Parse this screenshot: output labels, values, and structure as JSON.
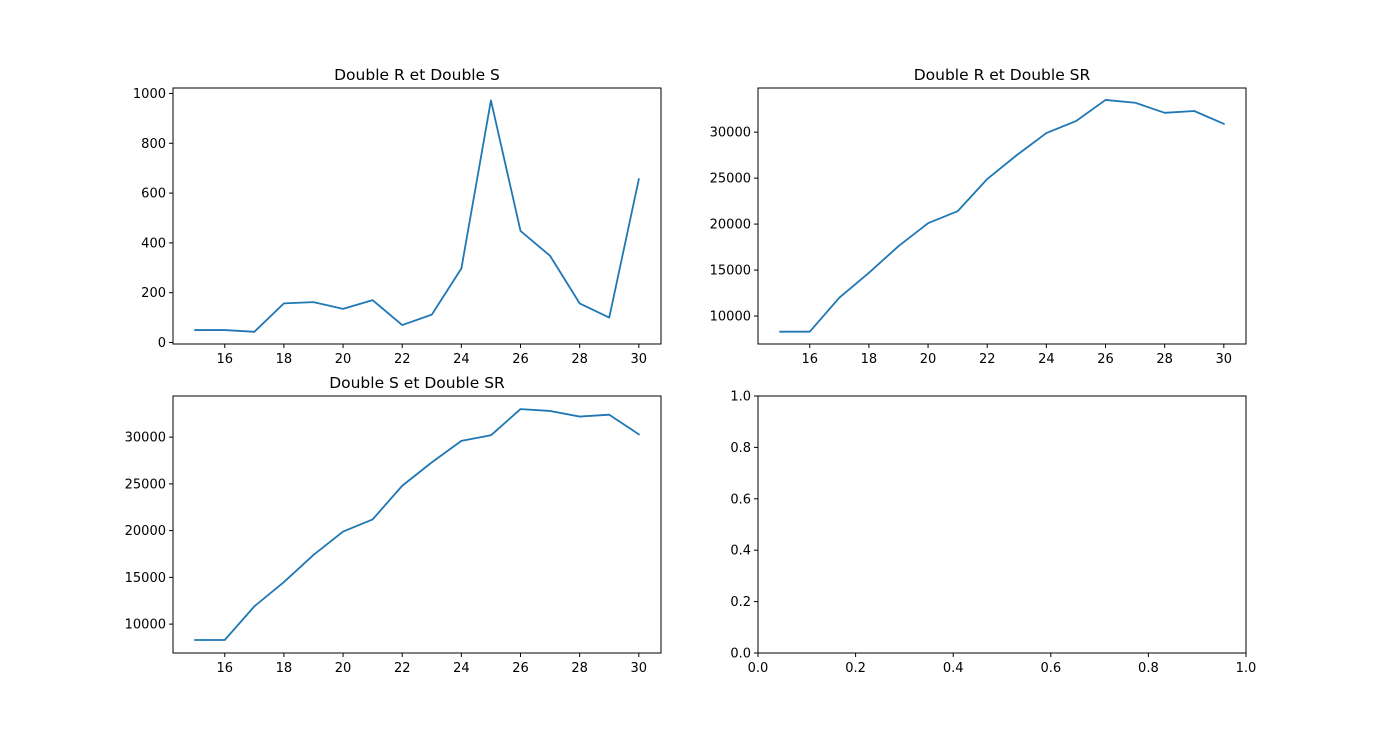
{
  "chart_data": [
    {
      "type": "line",
      "title": "Double R et Double S",
      "xlabel": "",
      "ylabel": "",
      "xlim": [
        14.25,
        30.75
      ],
      "ylim": [
        -6,
        1022
      ],
      "xticks": [
        16,
        18,
        20,
        22,
        24,
        26,
        28,
        30
      ],
      "yticks": [
        0,
        200,
        400,
        600,
        800,
        1000
      ],
      "grid": false,
      "color": "#1f77b4",
      "series": [
        {
          "x": [
            15,
            16,
            17,
            18,
            19,
            20,
            21,
            22,
            23,
            24,
            25,
            26,
            27,
            28,
            29,
            30
          ],
          "values": [
            50,
            50,
            43,
            157,
            162,
            135,
            170,
            70,
            112,
            297,
            972,
            448,
            348,
            157,
            100,
            656
          ]
        }
      ]
    },
    {
      "type": "line",
      "title": "Double R et Double SR",
      "xlabel": "",
      "ylabel": "",
      "xlim": [
        14.25,
        30.75
      ],
      "ylim": [
        6960,
        34800
      ],
      "xticks": [
        16,
        18,
        20,
        22,
        24,
        26,
        28,
        30
      ],
      "yticks": [
        10000,
        15000,
        20000,
        25000,
        30000
      ],
      "grid": false,
      "color": "#1f77b4",
      "series": [
        {
          "x": [
            15,
            16,
            17,
            18,
            19,
            20,
            21,
            22,
            23,
            24,
            25,
            26,
            27,
            28,
            29,
            30
          ],
          "values": [
            8300,
            8300,
            12000,
            14700,
            17600,
            20100,
            21400,
            24900,
            27500,
            29900,
            31200,
            33500,
            33200,
            32100,
            32300,
            30900
          ]
        }
      ]
    },
    {
      "type": "line",
      "title": "Double S et Double SR",
      "xlabel": "",
      "ylabel": "",
      "xlim": [
        14.25,
        30.75
      ],
      "ylim": [
        6910,
        34400
      ],
      "xticks": [
        16,
        18,
        20,
        22,
        24,
        26,
        28,
        30
      ],
      "yticks": [
        10000,
        15000,
        20000,
        25000,
        30000
      ],
      "grid": false,
      "color": "#1f77b4",
      "series": [
        {
          "x": [
            15,
            16,
            17,
            18,
            19,
            20,
            21,
            22,
            23,
            24,
            25,
            26,
            27,
            28,
            29,
            30
          ],
          "values": [
            8300,
            8300,
            11900,
            14500,
            17400,
            19900,
            21200,
            24800,
            27300,
            29600,
            30200,
            33000,
            32800,
            32200,
            32400,
            30300
          ]
        }
      ]
    },
    {
      "type": "line",
      "title": "",
      "xlabel": "",
      "ylabel": "",
      "xlim": [
        0,
        1
      ],
      "ylim": [
        0,
        1
      ],
      "xticks": [
        0.0,
        0.2,
        0.4,
        0.6,
        0.8,
        1.0
      ],
      "yticks": [
        0.0,
        0.2,
        0.4,
        0.6,
        0.8,
        1.0
      ],
      "tick_format": "0.0",
      "grid": false,
      "series": []
    }
  ]
}
